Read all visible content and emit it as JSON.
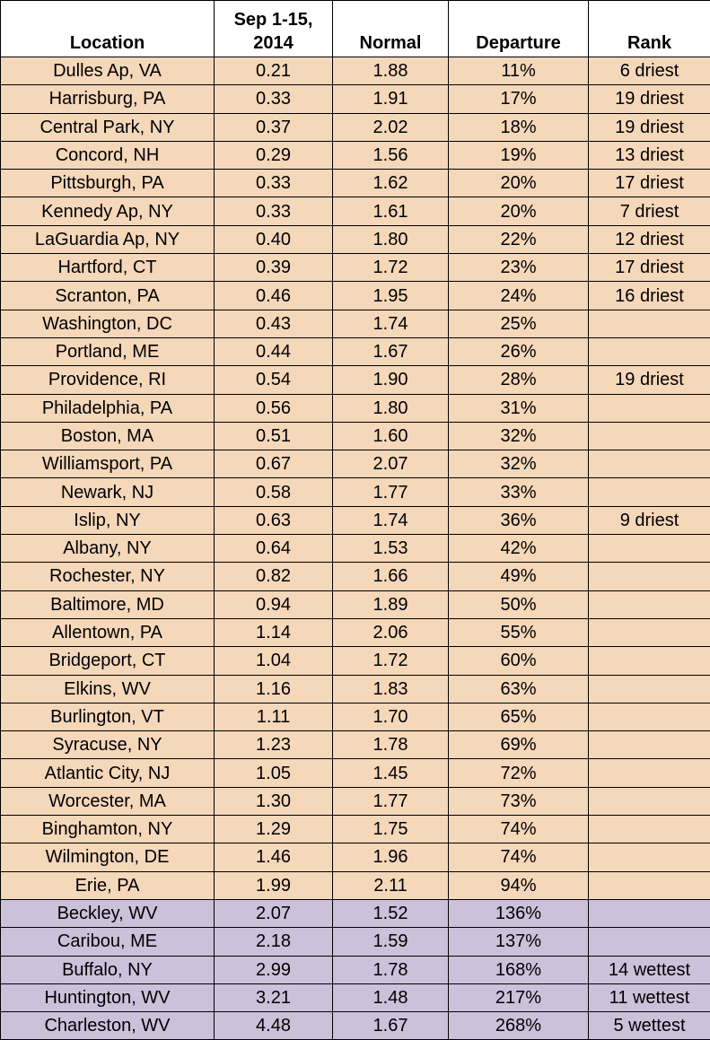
{
  "table": {
    "header": [
      "Location",
      "Sep 1-15,\n2014",
      "Normal",
      "Departure",
      "Rank"
    ],
    "groups": [
      {
        "color": "#f5d7ba",
        "rows": [
          [
            "Dulles Ap, VA",
            "0.21",
            "1.88",
            "11%",
            "6 driest"
          ],
          [
            "Harrisburg, PA",
            "0.33",
            "1.91",
            "17%",
            "19 driest"
          ],
          [
            "Central Park, NY",
            "0.37",
            "2.02",
            "18%",
            "19 driest"
          ],
          [
            "Concord, NH",
            "0.29",
            "1.56",
            "19%",
            "13 driest"
          ],
          [
            "Pittsburgh, PA",
            "0.33",
            "1.62",
            "20%",
            "17 driest"
          ],
          [
            "Kennedy Ap, NY",
            "0.33",
            "1.61",
            "20%",
            "7 driest"
          ],
          [
            "LaGuardia Ap, NY",
            "0.40",
            "1.80",
            "22%",
            "12 driest"
          ],
          [
            "Hartford, CT",
            "0.39",
            "1.72",
            "23%",
            "17 driest"
          ],
          [
            "Scranton, PA",
            "0.46",
            "1.95",
            "24%",
            "16 driest"
          ],
          [
            "Washington, DC",
            "0.43",
            "1.74",
            "25%",
            null
          ],
          [
            "Portland, ME",
            "0.44",
            "1.67",
            "26%",
            null
          ],
          [
            "Providence, RI",
            "0.54",
            "1.90",
            "28%",
            "19 driest"
          ],
          [
            "Philadelphia, PA",
            "0.56",
            "1.80",
            "31%",
            null
          ],
          [
            "Boston, MA",
            "0.51",
            "1.60",
            "32%",
            null
          ],
          [
            "Williamsport, PA",
            "0.67",
            "2.07",
            "32%",
            null
          ],
          [
            "Newark, NJ",
            "0.58",
            "1.77",
            "33%",
            null
          ],
          [
            "Islip, NY",
            "0.63",
            "1.74",
            "36%",
            "9 driest"
          ],
          [
            "Albany, NY",
            "0.64",
            "1.53",
            "42%",
            null
          ],
          [
            "Rochester, NY",
            "0.82",
            "1.66",
            "49%",
            null
          ],
          [
            "Baltimore, MD",
            "0.94",
            "1.89",
            "50%",
            null
          ],
          [
            "Allentown, PA",
            "1.14",
            "2.06",
            "55%",
            null
          ],
          [
            "Bridgeport, CT",
            "1.04",
            "1.72",
            "60%",
            null
          ],
          [
            "Elkins, WV",
            "1.16",
            "1.83",
            "63%",
            null
          ],
          [
            "Burlington, VT",
            "1.11",
            "1.70",
            "65%",
            null
          ],
          [
            "Syracuse, NY",
            "1.23",
            "1.78",
            "69%",
            null
          ],
          [
            "Atlantic City, NJ",
            "1.05",
            "1.45",
            "72%",
            null
          ],
          [
            "Worcester, MA",
            "1.30",
            "1.77",
            "73%",
            null
          ],
          [
            "Binghamton, NY",
            "1.29",
            "1.75",
            "74%",
            null
          ],
          [
            "Wilmington, DE",
            "1.46",
            "1.96",
            "74%",
            null
          ],
          [
            "Erie, PA",
            "1.99",
            "2.11",
            "94%",
            null
          ]
        ]
      },
      {
        "color": "#ccc1da",
        "rows": [
          [
            "Beckley, WV",
            "2.07",
            "1.52",
            "136%",
            null
          ],
          [
            "Caribou, ME",
            "2.18",
            "1.59",
            "137%",
            null
          ],
          [
            "Buffalo, NY",
            "2.99",
            "1.78",
            "168%",
            "14 wettest"
          ],
          [
            "Huntington, WV",
            "3.21",
            "1.48",
            "217%",
            "11 wettest"
          ],
          [
            "Charleston, WV",
            "4.48",
            "1.67",
            "268%",
            "5 wettest"
          ]
        ]
      }
    ]
  }
}
